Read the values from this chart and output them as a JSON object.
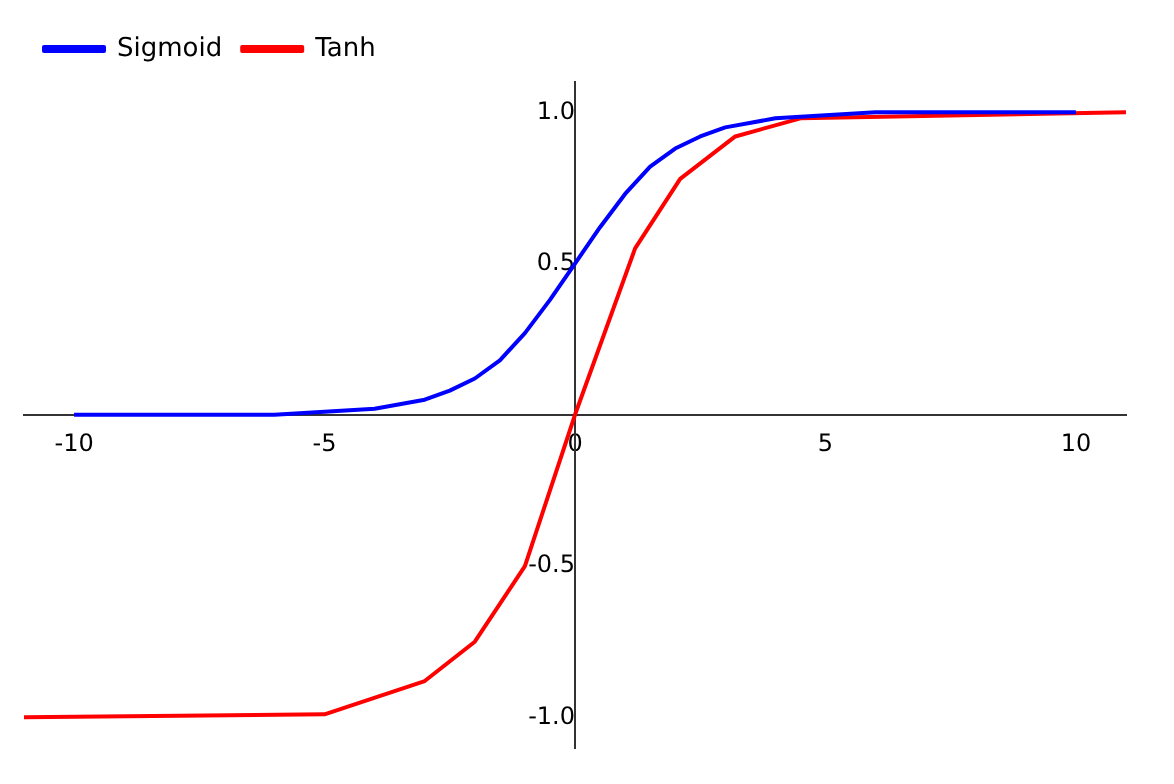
{
  "chart_data": {
    "type": "line",
    "legend": "top left",
    "grid": false,
    "marker": "none",
    "line_style": "solid",
    "xlim": [
      -11,
      11
    ],
    "ylim": [
      -1.1,
      1.1
    ],
    "xticks": [
      -10,
      -5,
      0,
      5,
      10
    ],
    "yticks": [
      {
        "value": -1,
        "label": "-1.0"
      },
      {
        "value": -0.5,
        "label": "-0.5"
      },
      {
        "value": 0.5,
        "label": "0.5"
      },
      {
        "value": 1,
        "label": "1.0"
      }
    ],
    "series": [
      {
        "name": "Sigmoid",
        "color": "#0000ff",
        "x": [
          -10,
          -8,
          -6,
          -5,
          -4,
          -3,
          -2.5,
          -2,
          -1.5,
          -1,
          -0.5,
          0,
          0.5,
          1,
          1.5,
          2,
          2.5,
          3,
          4,
          5,
          6,
          8,
          10
        ],
        "values": [
          0.0,
          0.0,
          0.0,
          0.01,
          0.02,
          0.05,
          0.08,
          0.12,
          0.18,
          0.27,
          0.38,
          0.5,
          0.62,
          0.73,
          0.82,
          0.88,
          0.92,
          0.95,
          0.98,
          0.99,
          1.0,
          1.0,
          1.0
        ]
      },
      {
        "name": "Tanh",
        "color": "#ff0000",
        "x": [
          -11,
          -5,
          -3,
          -2,
          -1,
          0,
          1.2,
          2.1,
          3.2,
          4.5,
          11
        ],
        "values": [
          -1.0,
          -0.99,
          -0.88,
          -0.75,
          -0.5,
          0.0,
          0.55,
          0.78,
          0.92,
          0.98,
          1.0
        ]
      }
    ]
  }
}
